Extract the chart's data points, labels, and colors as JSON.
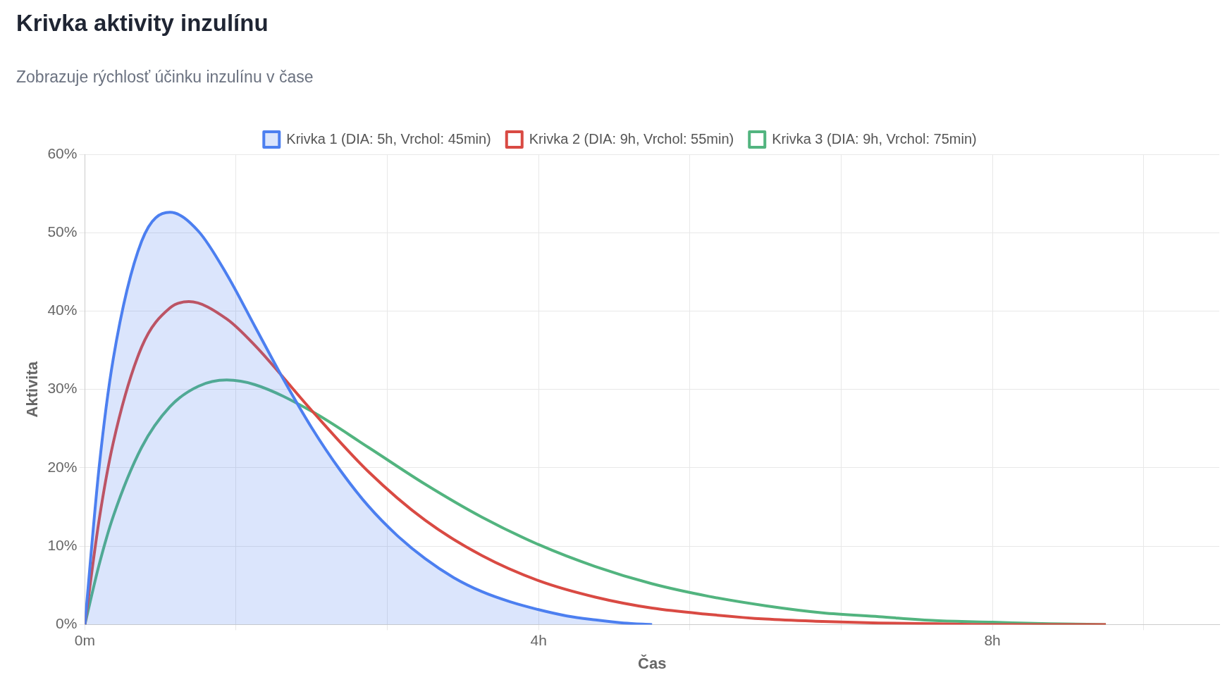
{
  "chart_data": {
    "type": "line",
    "title": "Krivka aktivity inzulínu",
    "subtitle": "Zobrazuje rýchlosť účinku inzulínu v čase",
    "xlabel": "Čas",
    "ylabel": "Aktivita",
    "xlim": [
      0,
      10
    ],
    "xticks": [
      {
        "value": 0,
        "label": "0m"
      },
      {
        "value": 1.333,
        "label": null
      },
      {
        "value": 2.667,
        "label": null
      },
      {
        "value": 4,
        "label": "4h"
      },
      {
        "value": 5.333,
        "label": null
      },
      {
        "value": 6.667,
        "label": null
      },
      {
        "value": 8,
        "label": "8h"
      },
      {
        "value": 9.333,
        "label": null
      }
    ],
    "ylim": [
      0,
      60
    ],
    "yticks": [
      {
        "value": 0,
        "label": "0%"
      },
      {
        "value": 10,
        "label": "10%"
      },
      {
        "value": 20,
        "label": "20%"
      },
      {
        "value": 30,
        "label": "30%"
      },
      {
        "value": 40,
        "label": "40%"
      },
      {
        "value": 50,
        "label": "50%"
      },
      {
        "value": 60,
        "label": "60%"
      }
    ],
    "grid": true,
    "legend": "top",
    "marker": "none",
    "line_style": "solid",
    "series": [
      {
        "name": "Krivka 1 (DIA: 5h, Vrchol: 45min)",
        "type": "area",
        "color": "#4c7ff0",
        "x": [
          0,
          0.125,
          0.25,
          0.5,
          0.75,
          1,
          1.25,
          1.5,
          1.75,
          2,
          2.25,
          2.5,
          2.75,
          3,
          3.25,
          3.5,
          3.75,
          4,
          4.25,
          4.5,
          4.75,
          5
        ],
        "values": [
          0,
          20.0,
          33.9,
          48.9,
          52.6,
          50.2,
          44.7,
          38.0,
          31.3,
          25.1,
          19.7,
          15.1,
          11.4,
          8.4,
          6.0,
          4.2,
          2.9,
          1.9,
          1.1,
          0.6,
          0.2,
          0
        ]
      },
      {
        "name": "Krivka 2 (DIA: 9h, Vrchol: 55min)",
        "color": "#d94a43",
        "x": [
          0,
          0.125,
          0.25,
          0.5,
          0.75,
          0.9167,
          1.25,
          1.5,
          2,
          2.5,
          3,
          3.5,
          4,
          4.5,
          5,
          5.5,
          6,
          6.5,
          7,
          7.5,
          8,
          8.5,
          9
        ],
        "values": [
          0,
          13.3,
          23.2,
          35.4,
          40.4,
          41.2,
          39.0,
          35.6,
          27.3,
          19.5,
          13.3,
          8.8,
          5.6,
          3.5,
          2.1,
          1.3,
          0.7,
          0.4,
          0.2,
          0.1,
          0,
          0,
          0
        ]
      },
      {
        "name": "Krivka 3 (DIA: 9h, Vrchol: 75min)",
        "color": "#52b47f",
        "x": [
          0,
          0.125,
          0.25,
          0.5,
          0.75,
          1,
          1.25,
          1.5,
          2,
          2.5,
          3,
          3.5,
          4,
          4.5,
          5,
          5.5,
          6,
          6.5,
          7,
          7.5,
          8,
          8.5,
          9
        ],
        "values": [
          0,
          7.6,
          13.8,
          22.6,
          27.8,
          30.4,
          31.2,
          30.6,
          27.2,
          22.6,
          17.9,
          13.7,
          10.2,
          7.4,
          5.2,
          3.6,
          2.4,
          1.5,
          1.0,
          0.5,
          0.3,
          0.1,
          0
        ]
      }
    ]
  }
}
